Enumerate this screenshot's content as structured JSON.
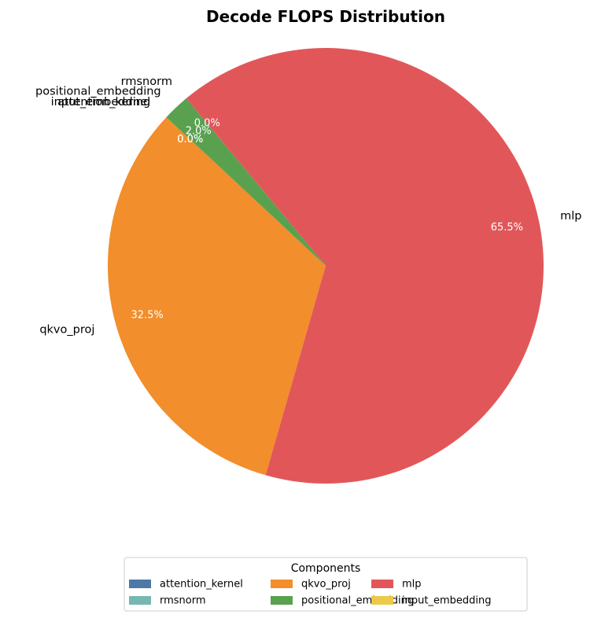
{
  "chart_data": {
    "type": "pie",
    "title": "Decode FLOPS Distribution",
    "slices": [
      {
        "label": "attention_kernel",
        "value": 0.0,
        "pct_label": "0.0%",
        "color": "#4e79a7"
      },
      {
        "label": "qkvo_proj",
        "value": 32.5,
        "pct_label": "32.5%",
        "color": "#f28e2b"
      },
      {
        "label": "mlp",
        "value": 65.5,
        "pct_label": "65.5%",
        "color": "#e15759"
      },
      {
        "label": "rmsnorm",
        "value": 0.0,
        "pct_label": "0.0%",
        "color": "#76b7b2"
      },
      {
        "label": "positional_embedding",
        "value": 2.0,
        "pct_label": "2.0%",
        "color": "#59a14f"
      },
      {
        "label": "input_embedding",
        "value": 0.0,
        "pct_label": "0.0%",
        "color": "#edc948"
      }
    ],
    "start_angle_deg": 137,
    "direction": "counterclockwise",
    "legend": {
      "title": "Components",
      "placement": "bottom-center",
      "columns": 3
    },
    "percent_label_color": "#ffffff"
  }
}
